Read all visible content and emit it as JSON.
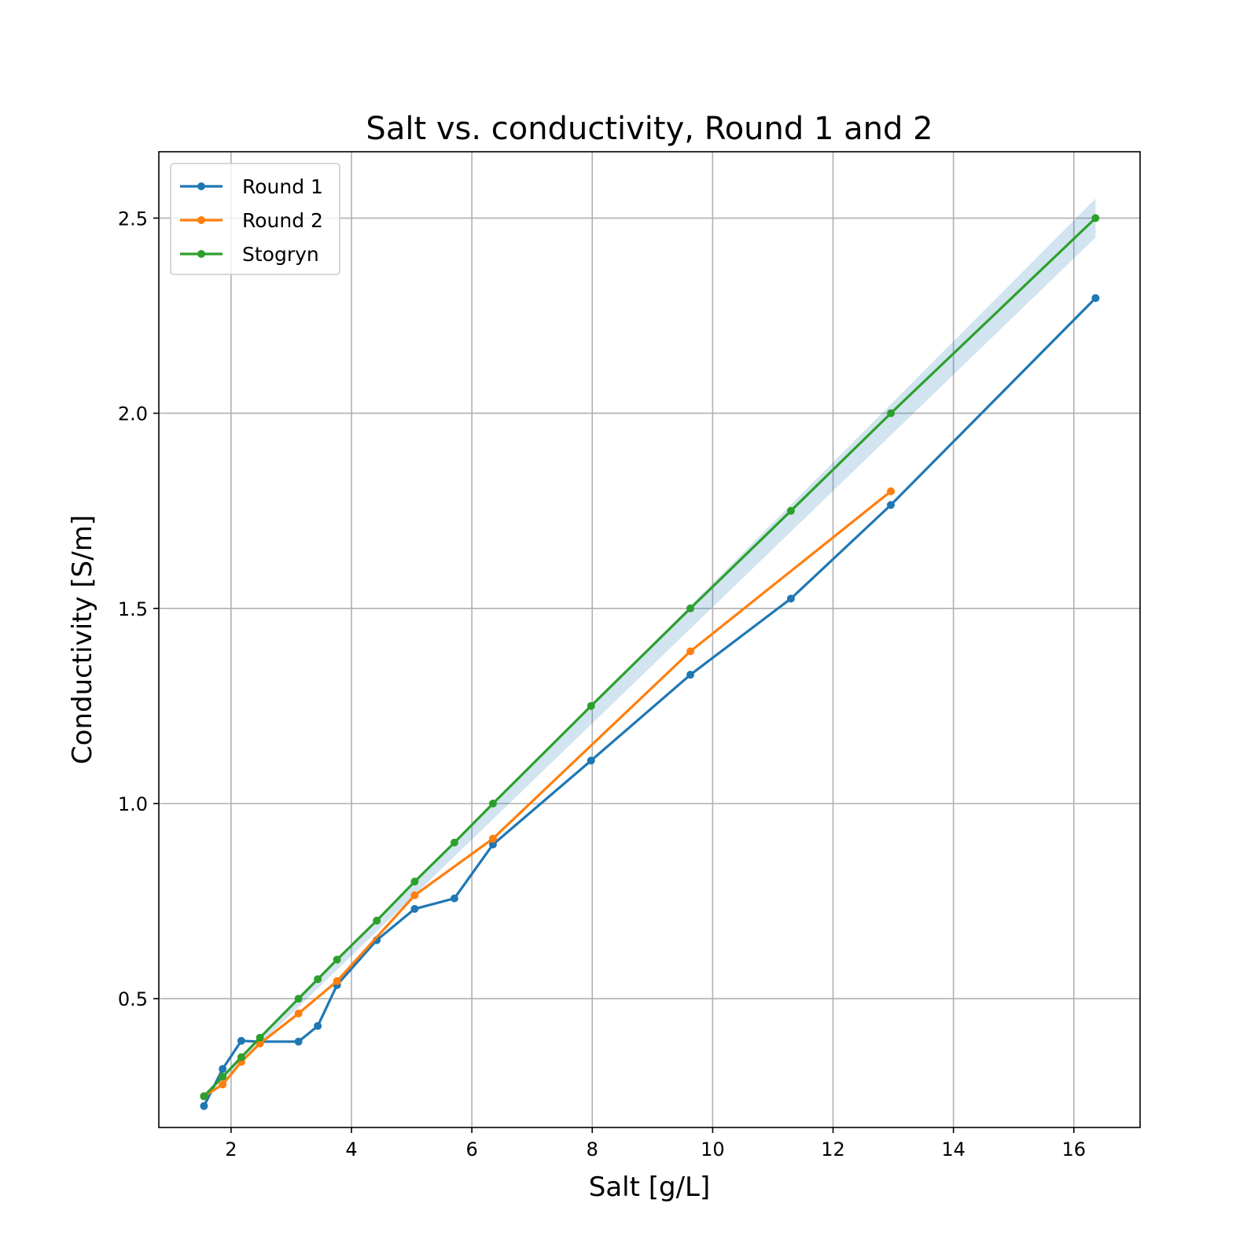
{
  "chart_data": {
    "type": "line",
    "title": "Salt vs. conductivity, Round 1 and 2",
    "xlabel": "Salt [g/L]",
    "ylabel": "Conductivity [S/m]",
    "xlim": [
      0.8,
      17.1
    ],
    "ylim": [
      0.17,
      2.67
    ],
    "xticks": [
      2,
      4,
      6,
      8,
      10,
      12,
      14,
      16
    ],
    "yticks": [
      0.5,
      1.0,
      1.5,
      2.0,
      2.5
    ],
    "xtick_labels": [
      "2",
      "4",
      "6",
      "8",
      "10",
      "12",
      "14",
      "16"
    ],
    "ytick_labels": [
      "0.5",
      "1.0",
      "1.5",
      "2.0",
      "2.5"
    ],
    "grid": true,
    "legend_position": "top-left",
    "series": [
      {
        "name": "Round 1",
        "color": "#1f77b4",
        "x": [
          1.55,
          1.86,
          2.17,
          2.48,
          3.12,
          3.44,
          3.76,
          4.42,
          5.05,
          5.71,
          6.35,
          7.98,
          9.63,
          11.3,
          12.96,
          16.36
        ],
        "y": [
          0.225,
          0.32,
          0.392,
          0.39,
          0.39,
          0.43,
          0.535,
          0.65,
          0.73,
          0.757,
          0.895,
          1.11,
          1.33,
          1.525,
          1.765,
          2.295
        ]
      },
      {
        "name": "Round 2",
        "color": "#ff7f0e",
        "x": [
          1.55,
          1.86,
          2.17,
          2.48,
          3.12,
          3.76,
          5.05,
          6.35,
          9.63,
          12.96
        ],
        "y": [
          0.25,
          0.28,
          0.338,
          0.385,
          0.462,
          0.545,
          0.765,
          0.91,
          1.39,
          1.8
        ]
      },
      {
        "name": "Stogryn",
        "color": "#2ca02c",
        "x": [
          1.55,
          1.86,
          2.17,
          2.48,
          3.12,
          3.44,
          3.76,
          4.42,
          5.05,
          5.71,
          6.35,
          7.98,
          9.63,
          11.3,
          12.96,
          16.36
        ],
        "y": [
          0.25,
          0.3,
          0.35,
          0.4,
          0.5,
          0.55,
          0.6,
          0.7,
          0.8,
          0.9,
          1.0,
          1.25,
          1.5,
          1.75,
          2.0,
          2.5
        ]
      }
    ],
    "band": {
      "color": "#1f77b4",
      "opacity": 0.2,
      "x": [
        1.55,
        16.36
      ],
      "lower": [
        0.245,
        2.45
      ],
      "upper": [
        0.255,
        2.55
      ]
    }
  }
}
